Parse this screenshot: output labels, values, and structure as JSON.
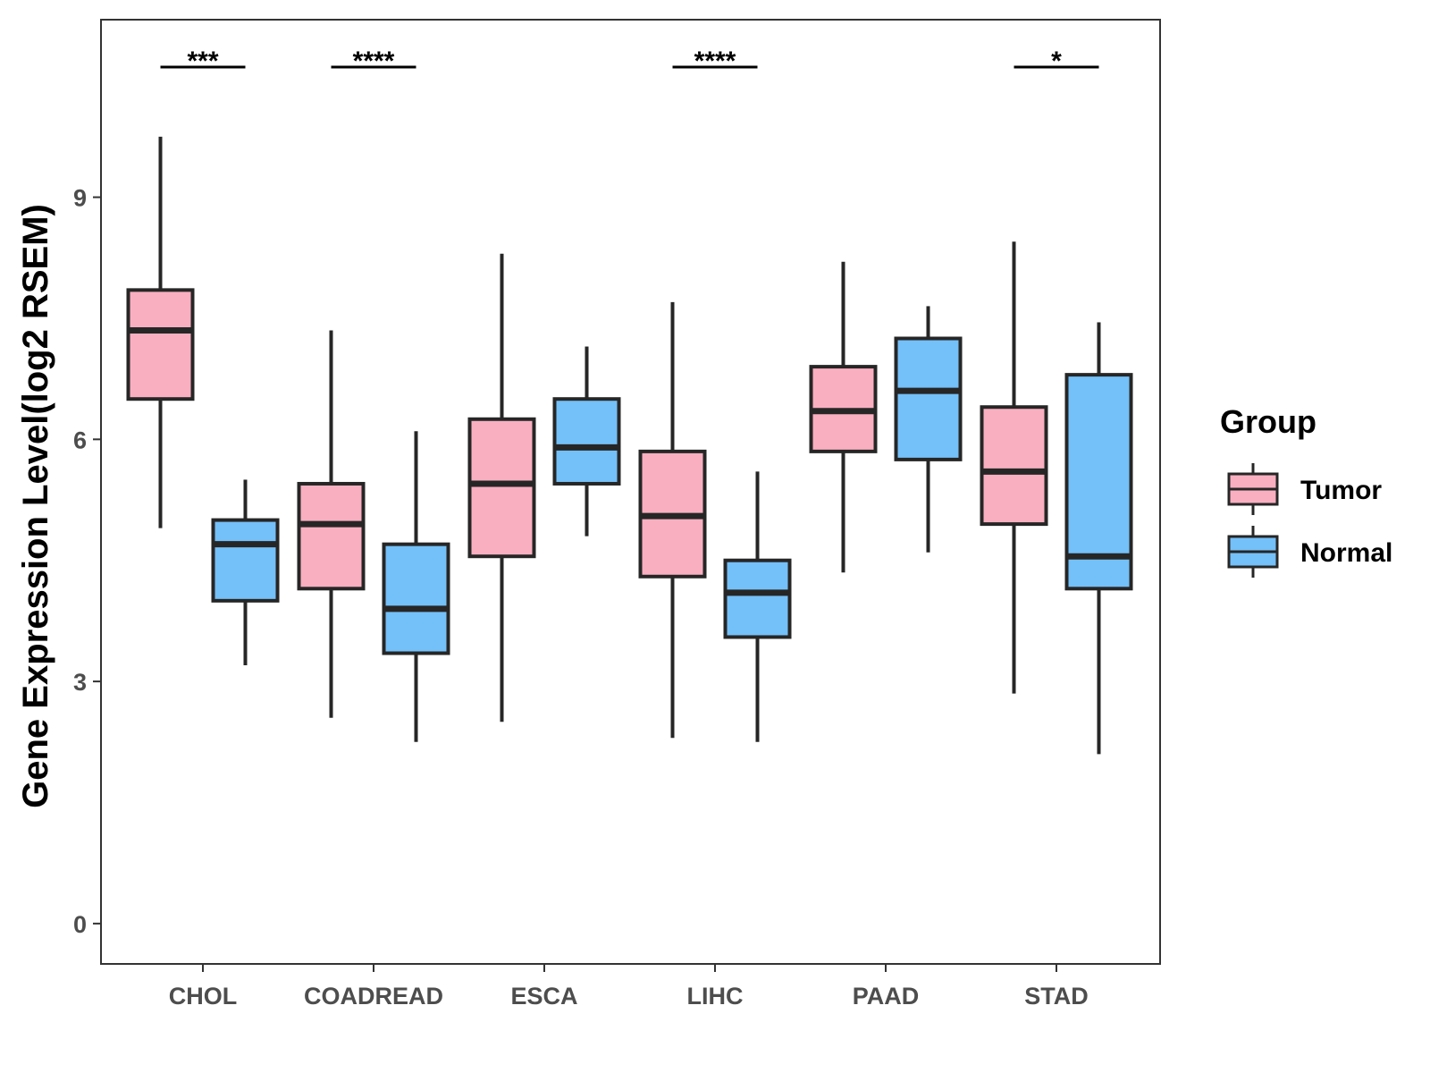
{
  "chart_data": {
    "type": "boxplot",
    "title": "",
    "xlabel": "",
    "ylabel": "Gene Expression Level(log2 RSEM)",
    "ylim": [
      -0.5,
      11.2
    ],
    "yticks": [
      0,
      3,
      6,
      9
    ],
    "grid": false,
    "legend": {
      "title": "Group",
      "position": "right"
    },
    "categories": [
      "CHOL",
      "COADREAD",
      "ESCA",
      "LIHC",
      "PAAD",
      "STAD"
    ],
    "series": [
      {
        "name": "Tumor",
        "color": "#F9AFC0",
        "boxes": [
          {
            "min": 4.9,
            "q1": 6.5,
            "median": 7.35,
            "q3": 7.85,
            "max": 9.75
          },
          {
            "min": 2.55,
            "q1": 4.15,
            "median": 4.95,
            "q3": 5.45,
            "max": 7.35
          },
          {
            "min": 2.5,
            "q1": 4.55,
            "median": 5.45,
            "q3": 6.25,
            "max": 8.3
          },
          {
            "min": 2.3,
            "q1": 4.3,
            "median": 5.05,
            "q3": 5.85,
            "max": 7.7
          },
          {
            "min": 4.35,
            "q1": 5.85,
            "median": 6.35,
            "q3": 6.9,
            "max": 8.2
          },
          {
            "min": 2.85,
            "q1": 4.95,
            "median": 5.6,
            "q3": 6.4,
            "max": 8.45
          }
        ]
      },
      {
        "name": "Normal",
        "color": "#74C0F8",
        "boxes": [
          {
            "min": 3.2,
            "q1": 4.0,
            "median": 4.7,
            "q3": 5.0,
            "max": 5.5
          },
          {
            "min": 2.25,
            "q1": 3.35,
            "median": 3.9,
            "q3": 4.7,
            "max": 6.1
          },
          {
            "min": 4.8,
            "q1": 5.45,
            "median": 5.9,
            "q3": 6.5,
            "max": 7.15
          },
          {
            "min": 2.25,
            "q1": 3.55,
            "median": 4.1,
            "q3": 4.5,
            "max": 5.6
          },
          {
            "min": 4.6,
            "q1": 5.75,
            "median": 6.6,
            "q3": 7.25,
            "max": 7.65
          },
          {
            "min": 2.1,
            "q1": 4.15,
            "median": 4.55,
            "q3": 6.8,
            "max": 7.45
          }
        ]
      }
    ],
    "significance": [
      {
        "category": "CHOL",
        "label": "***"
      },
      {
        "category": "COADREAD",
        "label": "****"
      },
      {
        "category": "LIHC",
        "label": "****"
      },
      {
        "category": "STAD",
        "label": "*"
      }
    ]
  }
}
